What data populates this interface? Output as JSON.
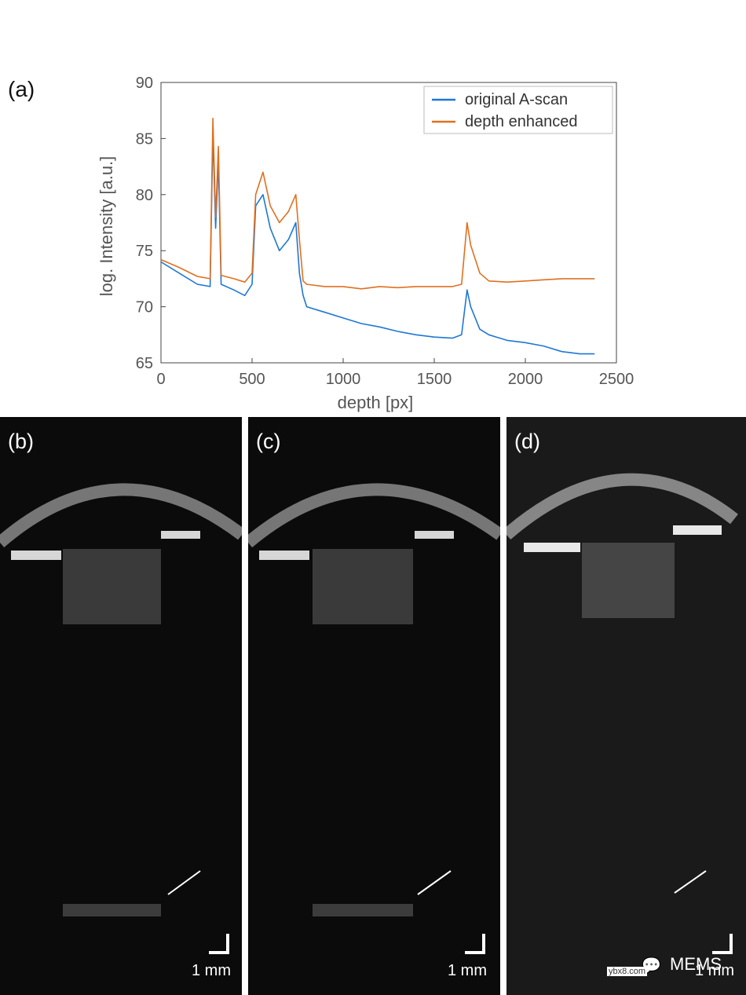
{
  "panel_a_label": "(a)",
  "chart_data": {
    "type": "line",
    "xlabel": "depth [px]",
    "ylabel": "log. Intensity [a.u.]",
    "xlim": [
      0,
      2500
    ],
    "ylim": [
      65,
      90
    ],
    "xticks": [
      "0",
      "500",
      "1000",
      "1500",
      "2000",
      "2500"
    ],
    "yticks": [
      "65",
      "70",
      "75",
      "80",
      "85",
      "90"
    ],
    "legend_position": "top-right",
    "series": [
      {
        "name": "original A-scan",
        "color": "#1f77d4",
        "x": [
          0,
          100,
          200,
          270,
          285,
          300,
          315,
          330,
          400,
          460,
          500,
          520,
          560,
          600,
          650,
          700,
          740,
          760,
          780,
          800,
          900,
          1000,
          1100,
          1200,
          1300,
          1400,
          1500,
          1600,
          1650,
          1680,
          1700,
          1750,
          1800,
          1900,
          2000,
          2100,
          2200,
          2300,
          2380
        ],
        "y": [
          74,
          73,
          72,
          71.8,
          85.5,
          77,
          83,
          72,
          71.5,
          71,
          72,
          79,
          80,
          77,
          75,
          76,
          77.5,
          73,
          71,
          70,
          69.5,
          69,
          68.5,
          68.2,
          67.8,
          67.5,
          67.3,
          67.2,
          67.5,
          71.5,
          70,
          68,
          67.5,
          67,
          66.8,
          66.5,
          66,
          65.8,
          65.8
        ]
      },
      {
        "name": "depth enhanced",
        "color": "#e07020",
        "x": [
          0,
          100,
          200,
          270,
          285,
          300,
          315,
          330,
          400,
          460,
          500,
          520,
          560,
          600,
          650,
          700,
          740,
          760,
          780,
          800,
          900,
          1000,
          1100,
          1200,
          1300,
          1400,
          1500,
          1600,
          1650,
          1680,
          1700,
          1750,
          1800,
          1900,
          2000,
          2100,
          2200,
          2300,
          2380
        ],
        "y": [
          74.2,
          73.5,
          72.7,
          72.5,
          86.8,
          78,
          84.3,
          72.8,
          72.5,
          72.2,
          73,
          80,
          82,
          79,
          77.5,
          78.5,
          80,
          76,
          72.3,
          72,
          71.8,
          71.8,
          71.6,
          71.8,
          71.7,
          71.8,
          71.8,
          71.8,
          72,
          77.5,
          75.5,
          73,
          72.3,
          72.2,
          72.3,
          72.4,
          72.5,
          72.5,
          72.5
        ]
      }
    ]
  },
  "oct_panels": [
    {
      "label": "(b)",
      "scale_text": "1 mm"
    },
    {
      "label": "(c)",
      "scale_text": "1 mm"
    },
    {
      "label": "(d)",
      "scale_text": "1 mm"
    }
  ],
  "watermark": {
    "brand": "MEMS",
    "site": "ybx8.com"
  }
}
